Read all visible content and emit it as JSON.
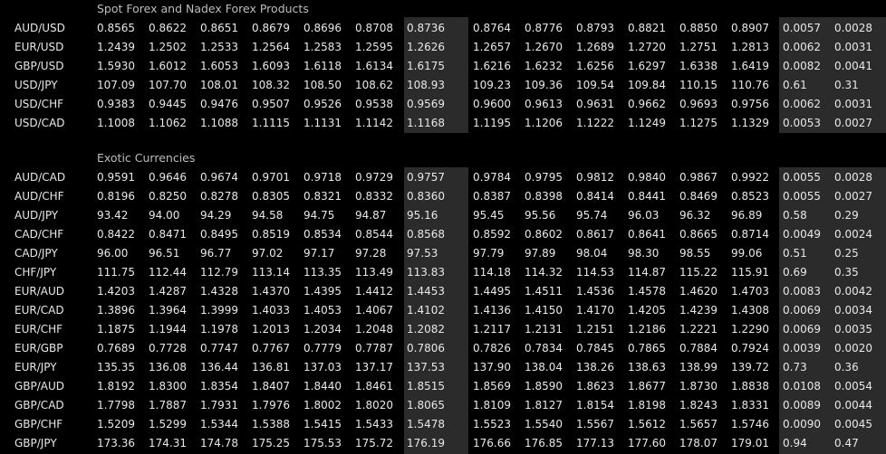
{
  "sections": [
    {
      "title": "Spot Forex and Nadex Forex Products",
      "rows": [
        {
          "pair": "AUD/USD",
          "values": [
            "0.8565",
            "0.8622",
            "0.8651",
            "0.8679",
            "0.8696",
            "0.8708",
            "0.8736",
            "0.8764",
            "0.8776",
            "0.8793",
            "0.8821",
            "0.8850",
            "0.8907",
            "0.0057",
            "0.0028"
          ]
        },
        {
          "pair": "EUR/USD",
          "values": [
            "1.2439",
            "1.2502",
            "1.2533",
            "1.2564",
            "1.2583",
            "1.2595",
            "1.2626",
            "1.2657",
            "1.2670",
            "1.2689",
            "1.2720",
            "1.2751",
            "1.2813",
            "0.0062",
            "0.0031"
          ]
        },
        {
          "pair": "GBP/USD",
          "values": [
            "1.5930",
            "1.6012",
            "1.6053",
            "1.6093",
            "1.6118",
            "1.6134",
            "1.6175",
            "1.6216",
            "1.6232",
            "1.6256",
            "1.6297",
            "1.6338",
            "1.6419",
            "0.0082",
            "0.0041"
          ]
        },
        {
          "pair": "USD/JPY",
          "values": [
            "107.09",
            "107.70",
            "108.01",
            "108.32",
            "108.50",
            "108.62",
            "108.93",
            "109.23",
            "109.36",
            "109.54",
            "109.84",
            "110.15",
            "110.76",
            "0.61",
            "0.31"
          ]
        },
        {
          "pair": "USD/CHF",
          "values": [
            "0.9383",
            "0.9445",
            "0.9476",
            "0.9507",
            "0.9526",
            "0.9538",
            "0.9569",
            "0.9600",
            "0.9613",
            "0.9631",
            "0.9662",
            "0.9693",
            "0.9756",
            "0.0062",
            "0.0031"
          ]
        },
        {
          "pair": "USD/CAD",
          "values": [
            "1.1008",
            "1.1062",
            "1.1088",
            "1.1115",
            "1.1131",
            "1.1142",
            "1.1168",
            "1.1195",
            "1.1206",
            "1.1222",
            "1.1249",
            "1.1275",
            "1.1329",
            "0.0053",
            "0.0027"
          ]
        }
      ]
    },
    {
      "title": "Exotic Currencies",
      "rows": [
        {
          "pair": "AUD/CAD",
          "values": [
            "0.9591",
            "0.9646",
            "0.9674",
            "0.9701",
            "0.9718",
            "0.9729",
            "0.9757",
            "0.9784",
            "0.9795",
            "0.9812",
            "0.9840",
            "0.9867",
            "0.9922",
            "0.0055",
            "0.0028"
          ]
        },
        {
          "pair": "AUD/CHF",
          "values": [
            "0.8196",
            "0.8250",
            "0.8278",
            "0.8305",
            "0.8321",
            "0.8332",
            "0.8360",
            "0.8387",
            "0.8398",
            "0.8414",
            "0.8441",
            "0.8469",
            "0.8523",
            "0.0055",
            "0.0027"
          ]
        },
        {
          "pair": "AUD/JPY",
          "values": [
            "93.42",
            "94.00",
            "94.29",
            "94.58",
            "94.75",
            "94.87",
            "95.16",
            "95.45",
            "95.56",
            "95.74",
            "96.03",
            "96.32",
            "96.89",
            "0.58",
            "0.29"
          ]
        },
        {
          "pair": "CAD/CHF",
          "values": [
            "0.8422",
            "0.8471",
            "0.8495",
            "0.8519",
            "0.8534",
            "0.8544",
            "0.8568",
            "0.8592",
            "0.8602",
            "0.8617",
            "0.8641",
            "0.8665",
            "0.8714",
            "0.0049",
            "0.0024"
          ]
        },
        {
          "pair": "CAD/JPY",
          "values": [
            "96.00",
            "96.51",
            "96.77",
            "97.02",
            "97.17",
            "97.28",
            "97.53",
            "97.79",
            "97.89",
            "98.04",
            "98.30",
            "98.55",
            "99.06",
            "0.51",
            "0.25"
          ]
        },
        {
          "pair": "CHF/JPY",
          "values": [
            "111.75",
            "112.44",
            "112.79",
            "113.14",
            "113.35",
            "113.49",
            "113.83",
            "114.18",
            "114.32",
            "114.53",
            "114.87",
            "115.22",
            "115.91",
            "0.69",
            "0.35"
          ]
        },
        {
          "pair": "EUR/AUD",
          "values": [
            "1.4203",
            "1.4287",
            "1.4328",
            "1.4370",
            "1.4395",
            "1.4412",
            "1.4453",
            "1.4495",
            "1.4511",
            "1.4536",
            "1.4578",
            "1.4620",
            "1.4703",
            "0.0083",
            "0.0042"
          ]
        },
        {
          "pair": "EUR/CAD",
          "values": [
            "1.3896",
            "1.3964",
            "1.3999",
            "1.4033",
            "1.4053",
            "1.4067",
            "1.4102",
            "1.4136",
            "1.4150",
            "1.4170",
            "1.4205",
            "1.4239",
            "1.4308",
            "0.0069",
            "0.0034"
          ]
        },
        {
          "pair": "EUR/CHF",
          "values": [
            "1.1875",
            "1.1944",
            "1.1978",
            "1.2013",
            "1.2034",
            "1.2048",
            "1.2082",
            "1.2117",
            "1.2131",
            "1.2151",
            "1.2186",
            "1.2221",
            "1.2290",
            "0.0069",
            "0.0035"
          ]
        },
        {
          "pair": "EUR/GBP",
          "values": [
            "0.7689",
            "0.7728",
            "0.7747",
            "0.7767",
            "0.7779",
            "0.7787",
            "0.7806",
            "0.7826",
            "0.7834",
            "0.7845",
            "0.7865",
            "0.7884",
            "0.7924",
            "0.0039",
            "0.0020"
          ]
        },
        {
          "pair": "EUR/JPY",
          "values": [
            "135.35",
            "136.08",
            "136.44",
            "136.81",
            "137.03",
            "137.17",
            "137.53",
            "137.90",
            "138.04",
            "138.26",
            "138.63",
            "138.99",
            "139.72",
            "0.73",
            "0.36"
          ]
        },
        {
          "pair": "GBP/AUD",
          "values": [
            "1.8192",
            "1.8300",
            "1.8354",
            "1.8407",
            "1.8440",
            "1.8461",
            "1.8515",
            "1.8569",
            "1.8590",
            "1.8623",
            "1.8677",
            "1.8730",
            "1.8838",
            "0.0108",
            "0.0054"
          ]
        },
        {
          "pair": "GBP/CAD",
          "values": [
            "1.7798",
            "1.7887",
            "1.7931",
            "1.7976",
            "1.8002",
            "1.8020",
            "1.8065",
            "1.8109",
            "1.8127",
            "1.8154",
            "1.8198",
            "1.8243",
            "1.8331",
            "0.0089",
            "0.0044"
          ]
        },
        {
          "pair": "GBP/CHF",
          "values": [
            "1.5209",
            "1.5299",
            "1.5344",
            "1.5388",
            "1.5415",
            "1.5433",
            "1.5478",
            "1.5523",
            "1.5540",
            "1.5567",
            "1.5612",
            "1.5657",
            "1.5746",
            "0.0090",
            "0.0045"
          ]
        },
        {
          "pair": "GBP/JPY",
          "values": [
            "173.36",
            "174.31",
            "174.78",
            "175.25",
            "175.53",
            "175.72",
            "176.19",
            "176.66",
            "176.85",
            "177.13",
            "177.60",
            "178.07",
            "179.01",
            "0.94",
            "0.47"
          ]
        }
      ]
    }
  ]
}
